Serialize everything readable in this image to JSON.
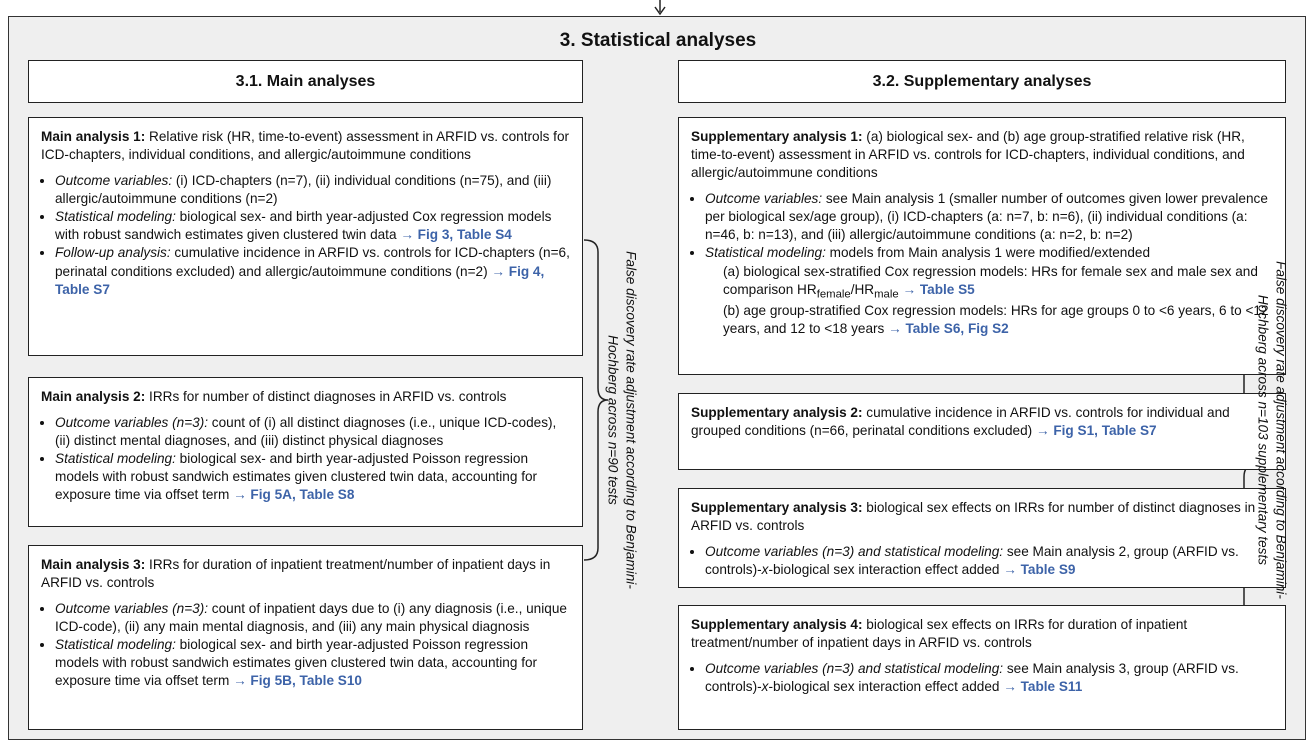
{
  "title": "3. Statistical analyses",
  "main": {
    "heading": "3.1. Main analyses",
    "fdr": "False discovery rate adjustment according to Benjamini-Hochberg across n=90 tests",
    "boxes": [
      {
        "title": [
          {
            "bold": "Main analysis 1:"
          },
          {
            "text": " Relative risk (HR, time-to-event) assessment in ARFID vs. controls for ICD-chapters, individual conditions, and allergic/autoimmune conditions"
          }
        ],
        "bullets": [
          {
            "runs": [
              {
                "italic": "Outcome variables:"
              },
              {
                "text": " (i) ICD-chapters (n=7), (ii) individual conditions (n=75), and (iii) allergic/autoimmune conditions (n=2)"
              }
            ]
          },
          {
            "runs": [
              {
                "italic": "Statistical modeling:"
              },
              {
                "text": " biological sex- and birth year-adjusted Cox regression models with robust sandwich estimates given clustered twin data "
              },
              {
                "ref": "→ Fig 3, Table S4"
              }
            ]
          },
          {
            "runs": [
              {
                "italic": "Follow-up analysis:"
              },
              {
                "text": " cumulative incidence in ARFID vs. controls for ICD-chapters (n=6, perinatal conditions excluded) and allergic/autoimmune conditions (n=2) "
              },
              {
                "ref": "→ Fig 4, Table S7"
              }
            ]
          }
        ]
      },
      {
        "title": [
          {
            "bold": "Main analysis 2:"
          },
          {
            "text": " IRRs for number of distinct diagnoses in ARFID vs. controls"
          }
        ],
        "bullets": [
          {
            "runs": [
              {
                "italic": "Outcome variables (n=3):"
              },
              {
                "text": " count of (i) all distinct diagnoses (i.e., unique ICD-codes), (ii) distinct mental diagnoses, and (iii) distinct physical diagnoses"
              }
            ]
          },
          {
            "runs": [
              {
                "italic": "Statistical modeling:"
              },
              {
                "text": " biological sex- and birth year-adjusted Poisson regression models with robust sandwich estimates given clustered twin data, accounting for exposure time via offset term "
              },
              {
                "ref": "→ Fig 5A, Table S8"
              }
            ]
          }
        ]
      },
      {
        "title": [
          {
            "bold": "Main analysis 3:"
          },
          {
            "text": " IRRs for duration of inpatient treatment/number of inpatient days in ARFID vs. controls"
          }
        ],
        "bullets": [
          {
            "runs": [
              {
                "italic": "Outcome variables (n=3):"
              },
              {
                "text": " count of inpatient days due to (i) any diagnosis (i.e., unique ICD-code), (ii) any main mental diagnosis, and (iii) any main physical diagnosis"
              }
            ]
          },
          {
            "runs": [
              {
                "italic": "Statistical modeling:"
              },
              {
                "text": " biological sex- and birth year-adjusted Poisson regression models with robust sandwich estimates given clustered twin data, accounting for exposure time via offset term "
              },
              {
                "ref": "→ Fig 5B, Table S10"
              }
            ]
          }
        ]
      }
    ]
  },
  "supp": {
    "heading": "3.2. Supplementary analyses",
    "fdr": "False discovery rate adjustment according to Benjamini-Hochberg across n=103 supplementary tests",
    "boxes": [
      {
        "title": [
          {
            "bold": "Supplementary analysis 1:"
          },
          {
            "text": " (a) biological sex- and (b) age group-stratified relative risk (HR, time-to-event) assessment in ARFID vs. controls for ICD-chapters, individual conditions, and allergic/autoimmune conditions"
          }
        ],
        "bullets": [
          {
            "runs": [
              {
                "italic": "Outcome variables:"
              },
              {
                "text": " see Main analysis 1 (smaller number of outcomes given lower prevalence per biological sex/age group), (i) ICD-chapters (a: n=7, b: n=6), (ii) individual conditions (a: n=46, b: n=13), and (iii) allergic/autoimmune conditions (a: n=2, b: n=2)"
              }
            ]
          },
          {
            "runs": [
              {
                "italic": "Statistical modeling:"
              },
              {
                "text": " models from Main analysis 1 were modified/extended"
              }
            ],
            "items": [
              [
                {
                  "text": "(a) biological sex-stratified Cox regression models: HRs for female sex and male sex and comparison HR"
                },
                {
                  "sub": "female"
                },
                {
                  "text": "/HR"
                },
                {
                  "sub": "male"
                },
                {
                  "text": " "
                },
                {
                  "ref": "→ Table S5"
                }
              ],
              [
                {
                  "text": "(b) age group-stratified Cox regression models: HRs for age groups 0 to <6 years, 6 to <12 years, and 12 to <18 years "
                },
                {
                  "ref": "→ Table S6, Fig S2"
                }
              ]
            ]
          }
        ]
      },
      {
        "title": [
          {
            "bold": "Supplementary analysis 2:"
          },
          {
            "text": " cumulative incidence in ARFID vs. controls for individual and grouped conditions (n=66, perinatal conditions excluded) "
          },
          {
            "ref": "→ Fig S1, Table S7"
          }
        ],
        "bullets": []
      },
      {
        "title": [
          {
            "bold": "Supplementary analysis 3:"
          },
          {
            "text": " biological sex effects on IRRs for number of distinct diagnoses in ARFID vs. controls"
          }
        ],
        "bullets": [
          {
            "runs": [
              {
                "italic": "Outcome variables (n=3) and statistical modeling:"
              },
              {
                "text": " see Main analysis 2, group (ARFID vs. controls)-"
              },
              {
                "italic": "x"
              },
              {
                "text": "-biological sex interaction effect added "
              },
              {
                "ref": "→ Table S9"
              }
            ]
          }
        ]
      },
      {
        "title": [
          {
            "bold": "Supplementary analysis 4:"
          },
          {
            "text": " biological sex effects on IRRs for duration of inpatient treatment/number of inpatient days in ARFID vs. controls"
          }
        ],
        "bullets": [
          {
            "runs": [
              {
                "italic": "Outcome variables (n=3) and statistical modeling:"
              },
              {
                "text": " see Main analysis 3, group (ARFID vs. controls)-"
              },
              {
                "italic": "x"
              },
              {
                "text": "-biological sex interaction effect added "
              },
              {
                "ref": "→ Table S11"
              }
            ]
          }
        ]
      }
    ]
  }
}
